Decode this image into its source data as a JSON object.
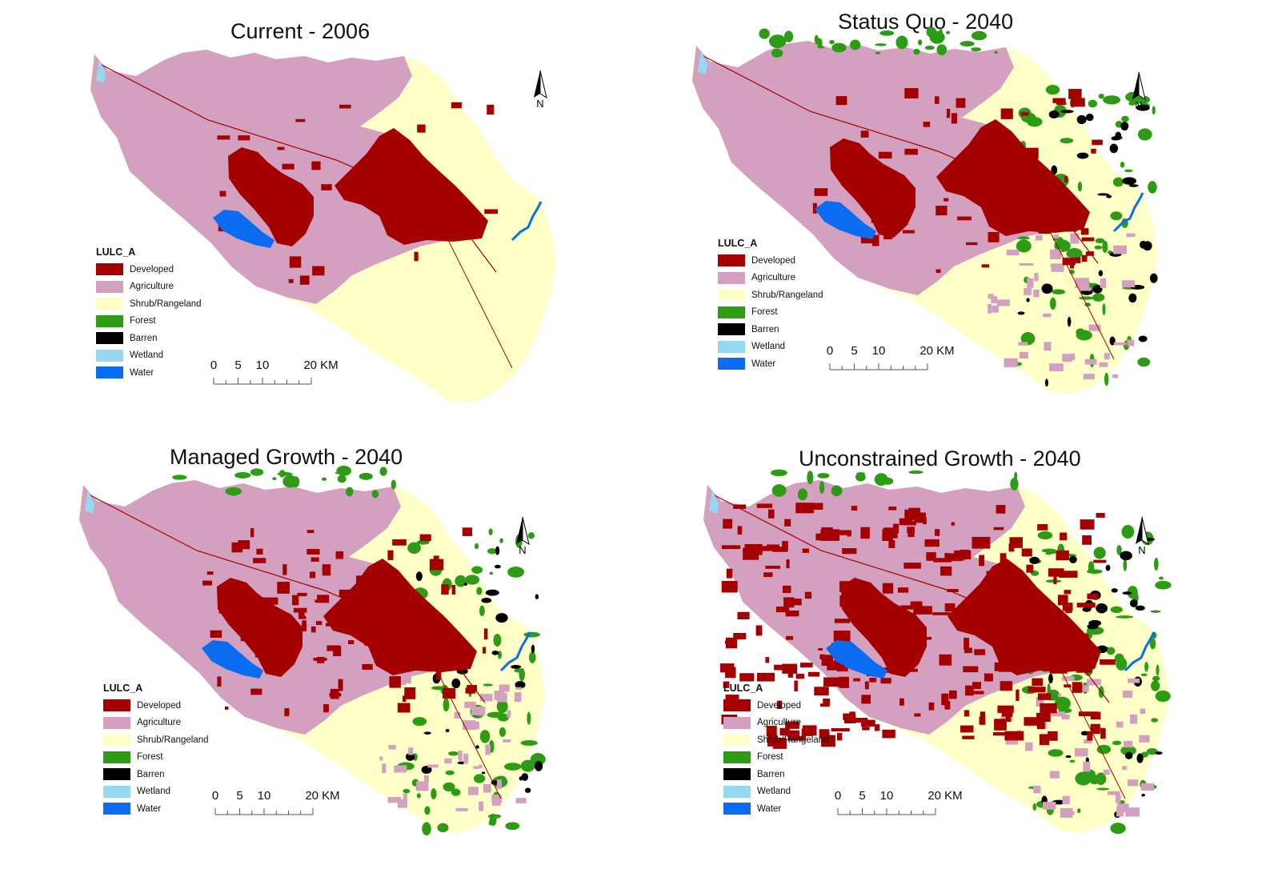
{
  "legend": {
    "title": "LULC_A",
    "classes": [
      {
        "label": "Developed",
        "color": "#a50000"
      },
      {
        "label": "Agriculture",
        "color": "#d3a0c0"
      },
      {
        "label": "Shrub/Rangeland",
        "color": "#ffffc8"
      },
      {
        "label": "Forest",
        "color": "#2d9c14"
      },
      {
        "label": "Barren",
        "color": "#000000"
      },
      {
        "label": "Wetland",
        "color": "#98d8f0"
      },
      {
        "label": "Water",
        "color": "#0a6cf0"
      }
    ]
  },
  "scale_bar": {
    "labels": [
      "0",
      "5",
      "10",
      "20 KM"
    ],
    "values": [
      0,
      5,
      10,
      20
    ]
  },
  "north_arrow": {
    "label": "N",
    "icon": "north-arrow-icon"
  },
  "panels": [
    {
      "title": "Current - 2006",
      "scenario": "current"
    },
    {
      "title": "Status Quo - 2040",
      "scenario": "status-quo"
    },
    {
      "title": "Managed Growth - 2040",
      "scenario": "managed"
    },
    {
      "title": "Unconstrained Growth - 2040",
      "scenario": "unconstrained"
    }
  ]
}
